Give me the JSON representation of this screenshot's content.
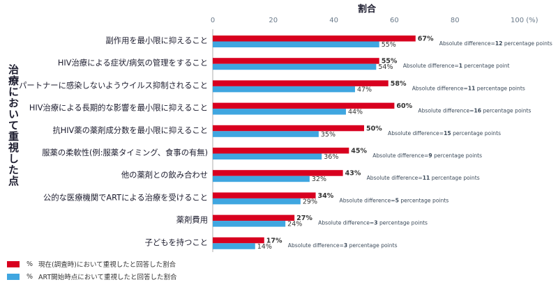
{
  "chart_data": {
    "type": "bar",
    "orientation": "horizontal",
    "title": "割合",
    "ylabel": "治療において重視した点",
    "xlim": [
      0,
      100
    ],
    "x_ticks": [
      "0",
      "20",
      "40",
      "60",
      "80",
      "100 (%)"
    ],
    "categories": [
      "副作用を最小限に抑えること",
      "HIV治療による症状/病気の管理をすること",
      "パートナーに感染しないようウイルス抑制されること",
      "HIV治療による長期的な影響を最小限に抑えること",
      "抗HIV薬の薬剤成分数を最小限に抑えること",
      "服薬の柔軟性(例:服薬タイミング、食事の有無)",
      "他の薬剤との飲み合わせ",
      "公的な医療機関でARTによる治療を受けること",
      "薬剤費用",
      "子どもを持つこと"
    ],
    "series": [
      {
        "name": "現在(調査時)において重視したと回答した割合",
        "color": "#d8001f",
        "values": [
          67,
          55,
          58,
          60,
          50,
          45,
          43,
          34,
          27,
          17
        ]
      },
      {
        "name": "ART開始時点において重視したと回答した割合",
        "color": "#3fa6e0",
        "values": [
          55,
          54,
          47,
          44,
          35,
          36,
          32,
          29,
          24,
          14
        ]
      }
    ],
    "annotations": [
      {
        "prefix": "Absolute difference=",
        "bold": "12",
        "suffix": " percentage points"
      },
      {
        "prefix": "Absolute difference=",
        "bold": "1",
        "suffix": " percentage point"
      },
      {
        "prefix": "Absolute difference=",
        "bold": "11",
        "suffix": " percentage points"
      },
      {
        "prefix": "Absolute difference=",
        "bold": "16",
        "suffix": " percentage points"
      },
      {
        "prefix": "Absolute difference=",
        "bold": "15",
        "suffix": " percentage points"
      },
      {
        "prefix": "Absolute difference=",
        "bold": "9",
        "suffix": " percentage points"
      },
      {
        "prefix": "Absolute difference=",
        "bold": "11",
        "suffix": " percentage points"
      },
      {
        "prefix": "Absolute difference=",
        "bold": "5",
        "suffix": " percentage points"
      },
      {
        "prefix": "Absolute difference=",
        "bold": "3",
        "suffix": " percentage points"
      },
      {
        "prefix": "Absolute difference=",
        "bold": "3",
        "suffix": " percentage points"
      }
    ],
    "legend": {
      "position": "bottom-left",
      "pct_symbol": "%",
      "items": [
        "現在(調査時)において重視したと回答した割合",
        "ART開始時点において重視したと回答した割合"
      ]
    },
    "grid": false
  }
}
